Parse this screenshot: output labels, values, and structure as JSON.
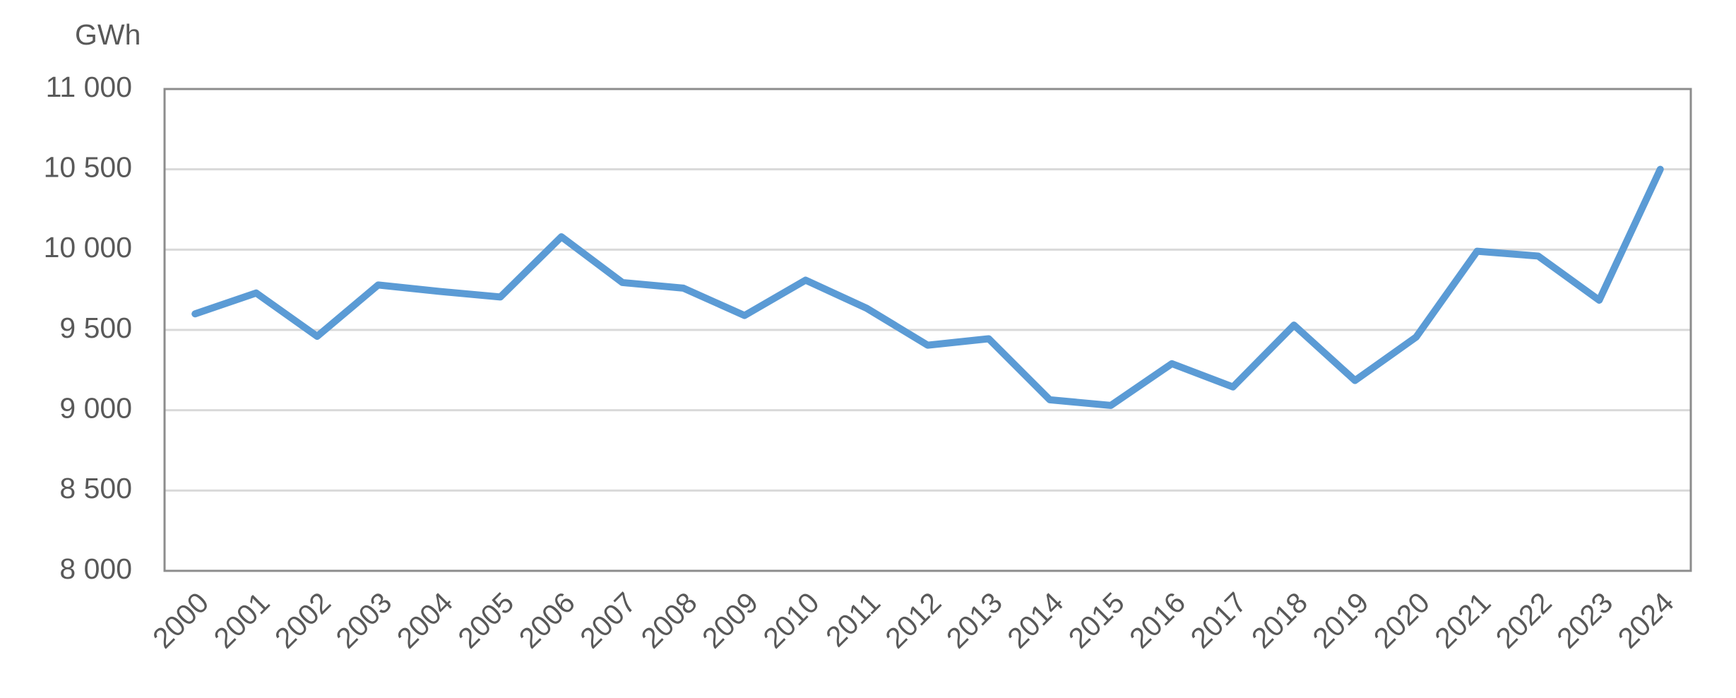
{
  "chart_data": {
    "type": "line",
    "y_label": "GWh",
    "categories": [
      "2000",
      "2001",
      "2002",
      "2003",
      "2004",
      "2005",
      "2006",
      "2007",
      "2008",
      "2009",
      "2010",
      "2011",
      "2012",
      "2013",
      "2014",
      "2015",
      "2016",
      "2017",
      "2018",
      "2019",
      "2020",
      "2021",
      "2022",
      "2023",
      "2024"
    ],
    "values": [
      9600,
      9730,
      9460,
      9780,
      9740,
      9705,
      10080,
      9795,
      9760,
      9590,
      9810,
      9635,
      9405,
      9445,
      9065,
      9030,
      9290,
      9145,
      9530,
      9185,
      9455,
      9990,
      9960,
      9685,
      10500
    ],
    "color": "#5b9bd5",
    "ylim": [
      8000,
      11000
    ],
    "yticks": [
      {
        "value": 8000,
        "label": "8 000"
      },
      {
        "value": 8500,
        "label": "8 500"
      },
      {
        "value": 9000,
        "label": "9 000"
      },
      {
        "value": 9500,
        "label": "9 500"
      },
      {
        "value": 10000,
        "label": "10 000"
      },
      {
        "value": 10500,
        "label": "10 500"
      },
      {
        "value": 11000,
        "label": "11 000"
      }
    ],
    "grid": true
  }
}
